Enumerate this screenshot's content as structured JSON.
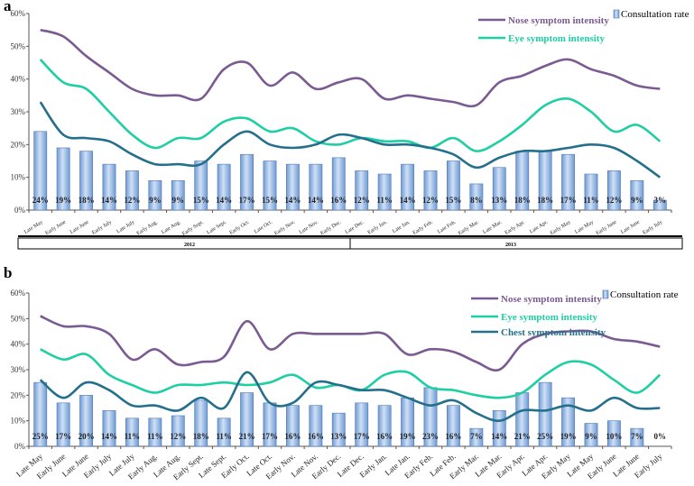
{
  "colors": {
    "nose": "#7b5a91",
    "eye": "#1ecfa4",
    "chest": "#24708c",
    "bar_fill_top": "#cfe0f5",
    "bar_fill_bottom": "#6f9ad4",
    "bar_stroke": "#4f79b8",
    "axis": "#555555"
  },
  "chart_data": [
    {
      "panel_label": "a",
      "type": "bar",
      "title": "",
      "xlabel": "",
      "ylabel": "",
      "ylim": [
        0,
        60
      ],
      "yticks": [
        "0%",
        "10%",
        "20%",
        "30%",
        "40%",
        "50%",
        "60%"
      ],
      "categories": [
        "Late May",
        "Early June",
        "Late June",
        "Early July",
        "Late July",
        "Early Aug.",
        "Late Aug.",
        "Early Sept.",
        "Late Sept.",
        "Early Oct.",
        "Late Oct.",
        "Early Nov.",
        "Late Nov.",
        "Early Dec.",
        "Late Dec.",
        "Early Jan.",
        "Late Jan.",
        "Early Feb.",
        "Late Feb.",
        "Early Mar.",
        "Late Mar.",
        "Early Apr.",
        "Late Apr.",
        "Early May",
        "Late May",
        "Early June",
        "Late June",
        "Early July"
      ],
      "bar_labels": [
        "24%",
        "19%",
        "18%",
        "14%",
        "12%",
        "9%",
        "9%",
        "15%",
        "14%",
        "17%",
        "15%",
        "14%",
        "14%",
        "16%",
        "12%",
        "11%",
        "14%",
        "12%",
        "15%",
        "8%",
        "13%",
        "18%",
        "18%",
        "17%",
        "11%",
        "12%",
        "9%",
        "3%"
      ],
      "groups": [
        {
          "label": "2012",
          "start": 0,
          "end": 13
        },
        {
          "label": "2013",
          "start": 14,
          "end": 27
        }
      ],
      "series": [
        {
          "name": "Consultation rate",
          "kind": "bar",
          "color_key": "bar",
          "values": [
            24,
            19,
            18,
            14,
            12,
            9,
            9,
            15,
            14,
            17,
            15,
            14,
            14,
            16,
            12,
            11,
            14,
            12,
            15,
            8,
            13,
            18,
            18,
            17,
            11,
            12,
            9,
            3
          ]
        },
        {
          "name": "Nose symptom intensity",
          "kind": "line",
          "color_key": "nose",
          "values": [
            55,
            53,
            47,
            42,
            37,
            35,
            35,
            34,
            43,
            45,
            38,
            42,
            37,
            39,
            40,
            34,
            35,
            34,
            33,
            32,
            39,
            41,
            44,
            46,
            43,
            41,
            38,
            37
          ]
        },
        {
          "name": "Eye  symptom intensity",
          "kind": "line",
          "color_key": "eye",
          "values": [
            46,
            39,
            37,
            30,
            23,
            19,
            22,
            22,
            27,
            28,
            24,
            25,
            21,
            20,
            22,
            21,
            21,
            19,
            22,
            18,
            21,
            26,
            32,
            34,
            30,
            24,
            26,
            21
          ]
        },
        {
          "name": "",
          "kind": "line",
          "color_key": "chest",
          "values": [
            33,
            23,
            22,
            21,
            17,
            14,
            14,
            14,
            20,
            24,
            20,
            19,
            20,
            23,
            22,
            20,
            20,
            19,
            17,
            13,
            16,
            18,
            18,
            19,
            20,
            19,
            15,
            10
          ]
        }
      ],
      "legend": [
        "Nose symptom intensity",
        "Eye  symptom intensity",
        "Consultation rate"
      ],
      "legend_position": "top-right"
    },
    {
      "panel_label": "b",
      "type": "bar",
      "title": "",
      "xlabel": "",
      "ylabel": "",
      "ylim": [
        0,
        60
      ],
      "yticks": [
        "0%",
        "10%",
        "20%",
        "30%",
        "40%",
        "50%",
        "60%"
      ],
      "categories": [
        "Late May",
        "Early June",
        "Late June",
        "Early July",
        "Late July",
        "Early Aug.",
        "Late Aug.",
        "Early Sept.",
        "Late Sept.",
        "Early Oct.",
        "Late Oct.",
        "Early Nov.",
        "Late Nov.",
        "Early Dec.",
        "Late Dec.",
        "Early Jan.",
        "Late Jan.",
        "Early Feb.",
        "Late Feb.",
        "Early Mar.",
        "Late Mar.",
        "Early Apr.",
        "Late Apr.",
        "Early May",
        "Late May",
        "Early June",
        "Late June",
        "Early July"
      ],
      "bar_labels": [
        "25%",
        "17%",
        "20%",
        "14%",
        "11%",
        "11%",
        "12%",
        "18%",
        "11%",
        "21%",
        "17%",
        "16%",
        "16%",
        "13%",
        "17%",
        "16%",
        "19%",
        "23%",
        "16%",
        "7%",
        "14%",
        "21%",
        "25%",
        "19%",
        "9%",
        "10%",
        "7%",
        "0%"
      ],
      "groups": [],
      "series": [
        {
          "name": "Consultation rate",
          "kind": "bar",
          "color_key": "bar",
          "values": [
            25,
            17,
            20,
            14,
            11,
            11,
            12,
            18,
            11,
            21,
            17,
            16,
            16,
            13,
            17,
            16,
            19,
            23,
            16,
            7,
            14,
            21,
            25,
            19,
            9,
            10,
            7,
            0
          ]
        },
        {
          "name": "Nose symptom intensity",
          "kind": "line",
          "color_key": "nose",
          "values": [
            51,
            47,
            47,
            44,
            34,
            38,
            32,
            33,
            35,
            49,
            38,
            44,
            44,
            44,
            44,
            44,
            36,
            38,
            37,
            33,
            30,
            40,
            44,
            45,
            45,
            42,
            41,
            39
          ]
        },
        {
          "name": "Eye  symptom intensity",
          "kind": "line",
          "color_key": "eye",
          "values": [
            38,
            34,
            36,
            28,
            24,
            21,
            24,
            24,
            25,
            24,
            25,
            28,
            23,
            24,
            22,
            28,
            29,
            23,
            22,
            20,
            19,
            21,
            28,
            33,
            32,
            26,
            21,
            28
          ]
        },
        {
          "name": "Chest symptom intensity",
          "kind": "line",
          "color_key": "chest",
          "values": [
            26,
            19,
            25,
            22,
            16,
            16,
            14,
            19,
            15,
            29,
            17,
            17,
            25,
            24,
            22,
            22,
            19,
            16,
            18,
            13,
            10,
            14,
            14,
            16,
            14,
            19,
            15,
            15
          ]
        }
      ],
      "legend": [
        "Nose symptom intensity",
        "Eye  symptom intensity",
        "Chest symptom intensity",
        "Consultation rate"
      ],
      "legend_position": "top-right"
    }
  ]
}
